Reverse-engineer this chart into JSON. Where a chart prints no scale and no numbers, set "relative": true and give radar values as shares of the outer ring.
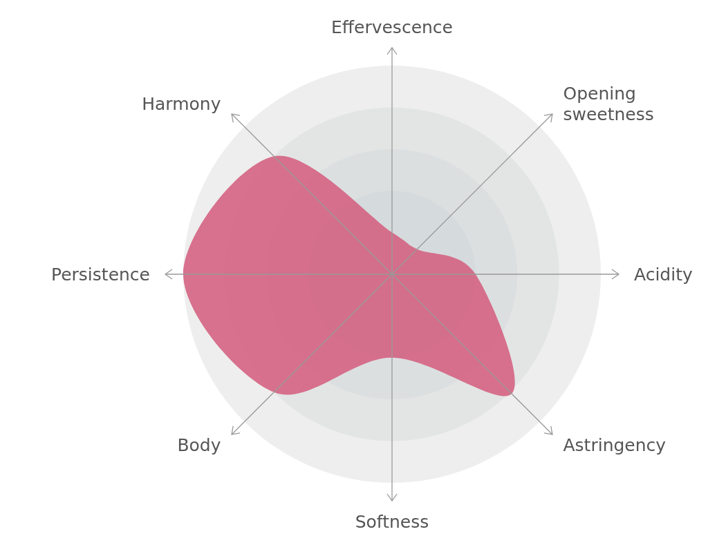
{
  "chart_data": {
    "type": "radar",
    "relative": true,
    "grid": true,
    "categories": [
      "Effervescence",
      "Opening sweetness",
      "Acidity",
      "Astringency",
      "Softness",
      "Body",
      "Persistence",
      "Harmony"
    ],
    "series": [
      {
        "color": "#d4607f",
        "values": [
          0.2,
          0.17,
          0.4,
          0.81,
          0.4,
          0.8,
          1.0,
          0.8
        ]
      }
    ]
  }
}
